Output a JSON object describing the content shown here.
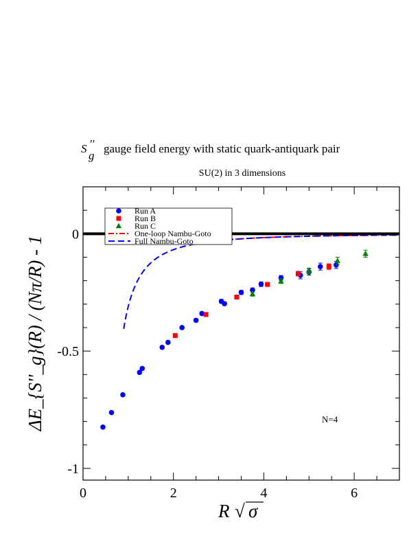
{
  "chart_data": {
    "type": "scatter",
    "title_main": "gauge field energy with static quark-antiquark pair",
    "title_symbol": "S",
    "title_symbol_prime": "′′",
    "title_symbol_sub": "g",
    "subtitle": "SU(2) in 3 dimensions",
    "xlabel_main": "R ",
    "xlabel_sqrt": "√",
    "xlabel_sigma": "σ",
    "ylabel": "ΔE_{S''_g}(R) / (Nπ/R) - 1",
    "xlim": [
      0,
      7
    ],
    "ylim": [
      -1.05,
      0.2
    ],
    "x_ticks": [
      "0",
      "2",
      "4",
      "6"
    ],
    "y_ticks": [
      "0",
      "-0.5",
      "-1"
    ],
    "annotation": "N=4",
    "colors": {
      "run_a": "#0000ff",
      "run_b": "#ff0000",
      "run_c": "#008000",
      "one_loop": "#ff0000",
      "full_ng": "#0000ff"
    },
    "legend": [
      {
        "label": "Run A",
        "marker": "circle",
        "color": "#0000ff"
      },
      {
        "label": "Run B",
        "marker": "square",
        "color": "#ff0000"
      },
      {
        "label": "Run C",
        "marker": "triangle",
        "color": "#008000"
      },
      {
        "label": "One-loop Nambu-Goto",
        "line": "dashdot",
        "color": "#ff0000"
      },
      {
        "label": "Full Nambu-Goto",
        "line": "dashed",
        "color": "#0000ff"
      }
    ],
    "series": [
      {
        "name": "Run A",
        "marker": "circle",
        "points": [
          [
            0.44,
            -0.824
          ],
          [
            0.63,
            -0.762
          ],
          [
            0.88,
            -0.686
          ],
          [
            1.25,
            -0.591
          ],
          [
            1.31,
            -0.574
          ],
          [
            1.75,
            -0.484
          ],
          [
            1.88,
            -0.463
          ],
          [
            2.19,
            -0.4
          ],
          [
            2.5,
            -0.369
          ],
          [
            2.63,
            -0.34
          ],
          [
            3.06,
            -0.288
          ],
          [
            3.13,
            -0.298
          ],
          [
            3.5,
            -0.25
          ],
          [
            3.75,
            -0.24
          ],
          [
            3.94,
            -0.215
          ],
          [
            4.38,
            -0.188
          ],
          [
            4.81,
            -0.177
          ],
          [
            5.0,
            -0.163
          ],
          [
            5.25,
            -0.14
          ],
          [
            5.6,
            -0.133
          ]
        ],
        "errors": [
          0.005,
          0.005,
          0.005,
          0.006,
          0.006,
          0.006,
          0.006,
          0.006,
          0.007,
          0.007,
          0.008,
          0.008,
          0.009,
          0.009,
          0.01,
          0.01,
          0.015,
          0.013,
          0.015,
          0.015
        ]
      },
      {
        "name": "Run B",
        "marker": "square",
        "points": [
          [
            2.04,
            -0.434
          ],
          [
            2.72,
            -0.344
          ],
          [
            3.4,
            -0.27
          ],
          [
            4.08,
            -0.216
          ],
          [
            4.76,
            -0.17
          ],
          [
            5.44,
            -0.14
          ]
        ],
        "errors": [
          0.005,
          0.006,
          0.006,
          0.008,
          0.01,
          0.012
        ]
      },
      {
        "name": "Run C",
        "marker": "triangle",
        "points": [
          [
            3.75,
            -0.256
          ],
          [
            4.38,
            -0.202
          ],
          [
            5.0,
            -0.158
          ],
          [
            5.63,
            -0.115
          ],
          [
            6.25,
            -0.085
          ]
        ],
        "errors": [
          0.01,
          0.01,
          0.012,
          0.015,
          0.015
        ]
      }
    ],
    "reference_line": {
      "y": 0
    },
    "curves": [
      {
        "name": "One-loop Nambu-Goto",
        "style": "dashdot",
        "color": "#ff0000",
        "formula": "-(N-2)*pi/(24*R^2)",
        "N": 4,
        "x_range": [
          2.48,
          7.0
        ]
      },
      {
        "name": "Full Nambu-Goto",
        "style": "dashed",
        "color": "#0000ff",
        "formula": "sqrt(1-(N-2)*pi/(12*R^2))-1",
        "N": 4,
        "x_range": [
          0.9,
          7.0
        ]
      }
    ]
  }
}
